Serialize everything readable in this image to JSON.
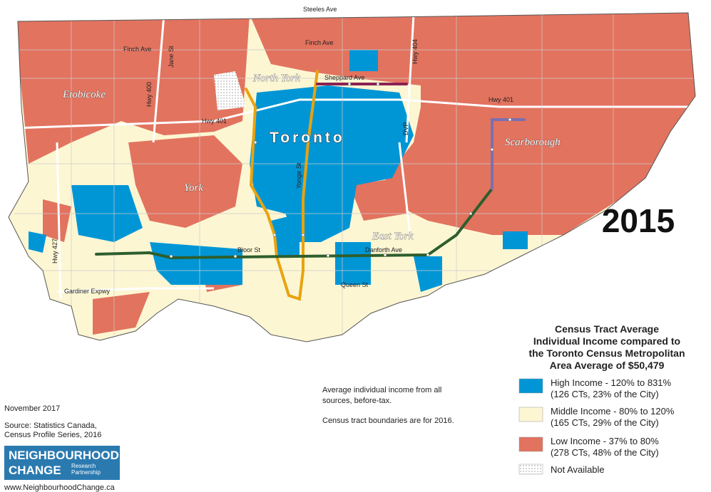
{
  "year": "2015",
  "street_labels": [
    "Steeles Ave",
    "Finch Ave",
    "Finch Ave",
    "Jane St",
    "Hwy 400",
    "Hwy 404",
    "Sheppard Ave",
    "Hwy 401",
    "Hwy 401",
    "DVP",
    "Yonge St",
    "Bloor St",
    "Danforth Ave",
    "Queen St",
    "Gardiner Expwy",
    "Hwy 427"
  ],
  "area_labels": [
    "Etobicoke",
    "North York",
    "Toronto",
    "Scarborough",
    "York",
    "East York"
  ],
  "legend": {
    "title": [
      "Census Tract Average",
      "Individual Income compared to",
      "the Toronto Census Metropolitan",
      "Area Average of $50,479"
    ],
    "items": [
      {
        "label": "High Income - 120% to 831%",
        "detail": "(126 CTs, 23% of the City)",
        "color": "#0096d6"
      },
      {
        "label": "Middle Income - 80% to 120%",
        "detail": "(165 CTs, 29% of the City)",
        "color": "#fdf6d3"
      },
      {
        "label": "Low Income - 37% to 80%",
        "detail": "(278 CTs, 48% of the City)",
        "color": "#e2735f"
      },
      {
        "label": "Not Available",
        "color": "#ffffff"
      }
    ]
  },
  "notes": [
    "Average individual income from all",
    "sources, before-tax.",
    "Census tract boundaries are for 2016."
  ],
  "footer": {
    "date": "November 2017",
    "source": [
      "Source: Statistics Canada,",
      "Census Profile Series, 2016"
    ],
    "logo": [
      "NEIGHBOURHOOD",
      "CHANGE",
      "Research",
      "Partnership"
    ],
    "url": "www.NeighbourhoodChange.ca"
  }
}
